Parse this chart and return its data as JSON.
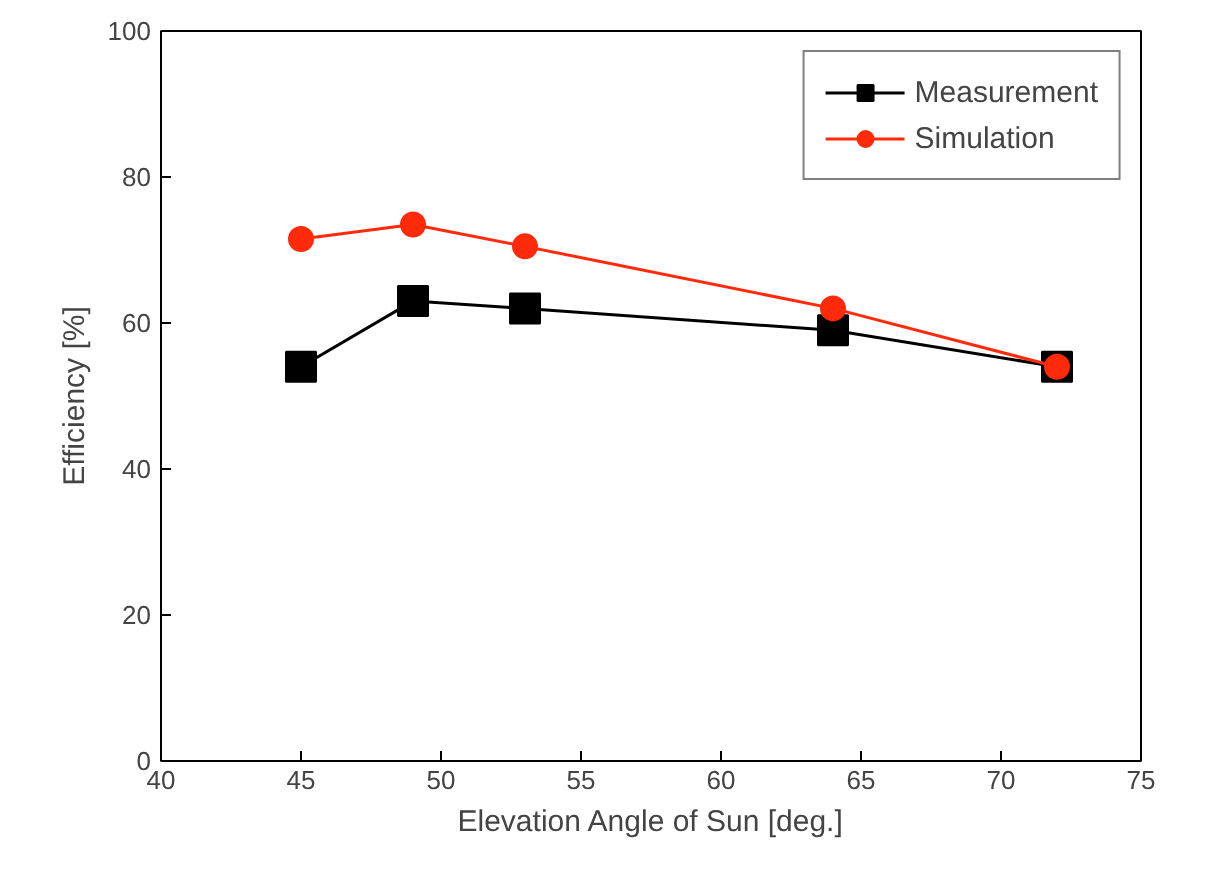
{
  "chart_data": {
    "type": "line",
    "xlabel": "Elevation Angle of Sun [deg.]",
    "ylabel": "Efficiency [%]",
    "x": [
      45,
      49,
      53,
      64,
      72
    ],
    "series": [
      {
        "name": "Measurement",
        "color": "#000000",
        "marker": "square",
        "values": [
          54,
          63,
          62,
          59,
          54
        ]
      },
      {
        "name": "Simulation",
        "color": "#ff2a0a",
        "marker": "circle",
        "values": [
          71.5,
          73.5,
          70.5,
          62,
          54
        ]
      }
    ],
    "xlim": [
      40,
      75
    ],
    "xticks": [
      40,
      45,
      50,
      55,
      60,
      65,
      70,
      75
    ],
    "ylim": [
      0,
      100
    ],
    "yticks": [
      0,
      20,
      40,
      60,
      80,
      100
    ],
    "grid": false,
    "legend": "top right",
    "line_style": "solid"
  }
}
